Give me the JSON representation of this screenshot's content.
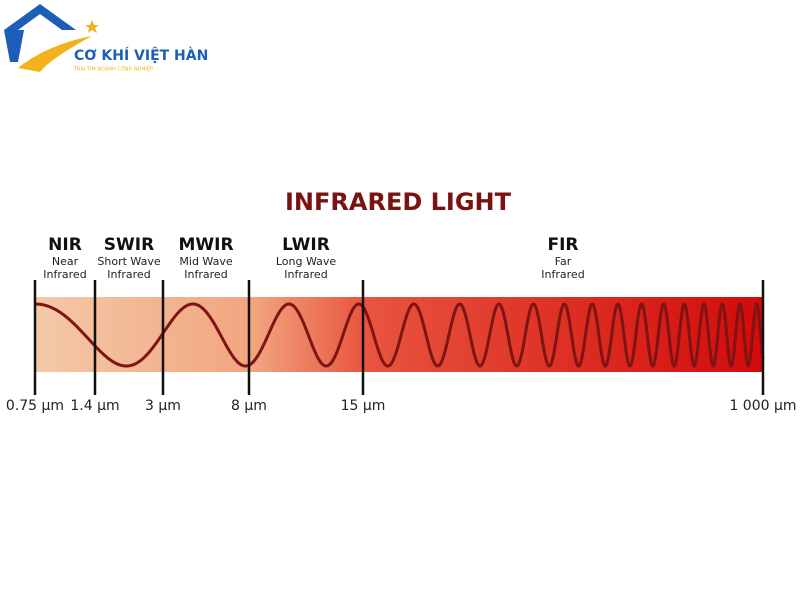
{
  "logo": {
    "name": "CƠ KHÍ VIỆT HÀN",
    "tagline": "TRÁI TIM NGÀNH CÔNG NGHIỆP"
  },
  "title": "INFRARED LIGHT",
  "bands": [
    {
      "abbr": "NIR",
      "lines": [
        "Near",
        "Infrared"
      ]
    },
    {
      "abbr": "SWIR",
      "lines": [
        "Short Wave",
        "Infrared"
      ]
    },
    {
      "abbr": "MWIR",
      "lines": [
        "Mid Wave",
        "Infrared"
      ]
    },
    {
      "abbr": "LWIR",
      "lines": [
        "Long Wave",
        "Infrared"
      ]
    },
    {
      "abbr": "FIR",
      "lines": [
        "Far",
        "Infrared"
      ]
    }
  ],
  "boundaries": [
    "0.75 µm",
    "1.4 µm",
    "3 µm",
    "8 µm",
    "15 µm",
    "1 000 µm"
  ]
}
